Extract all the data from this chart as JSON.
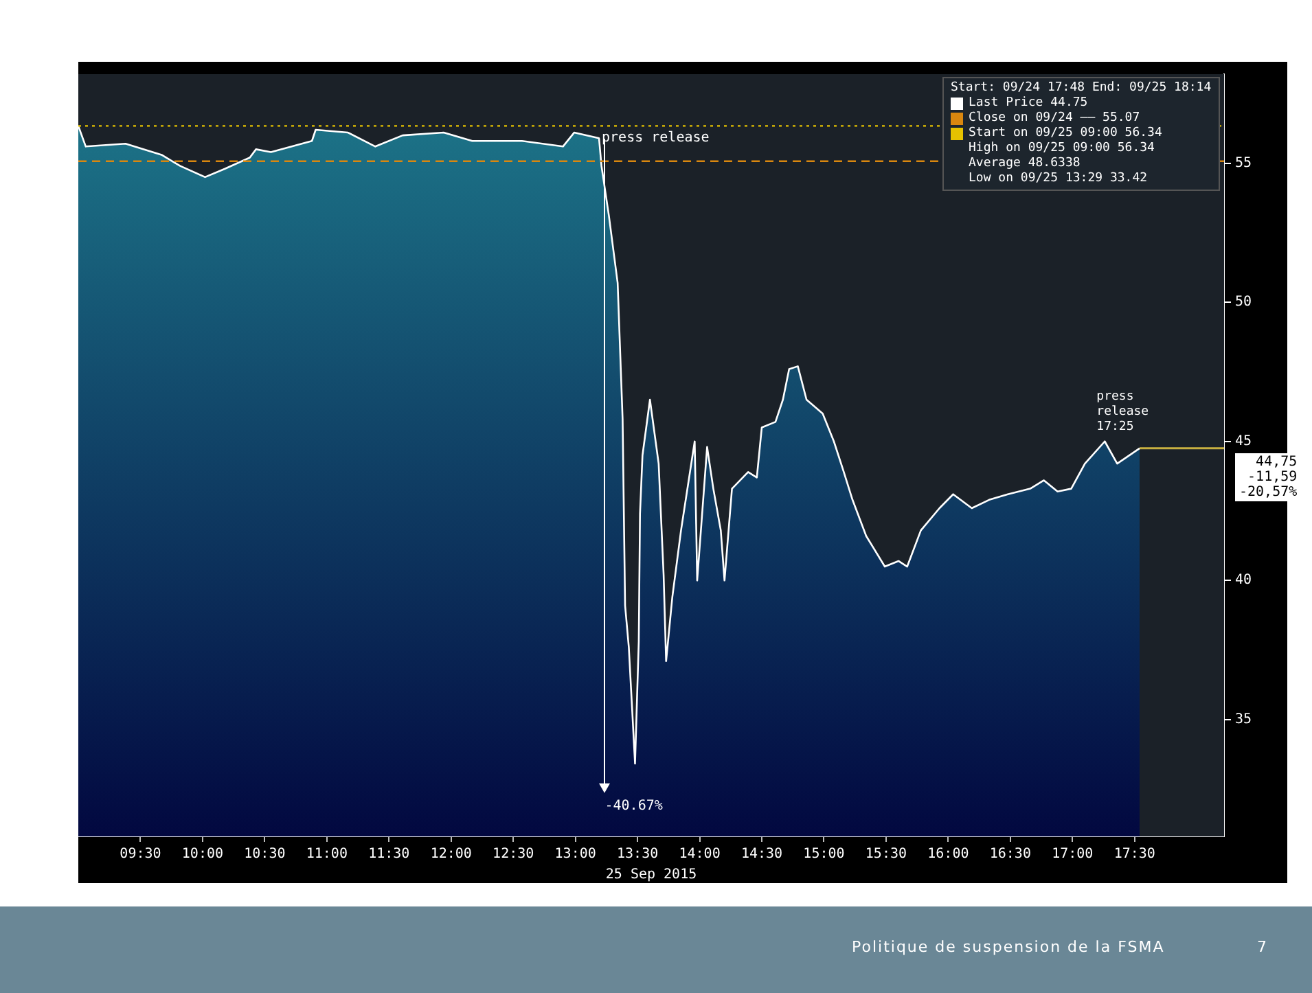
{
  "chart_data": {
    "type": "area",
    "xlabel": "25 Sep 2015",
    "legend": "top right",
    "legend_title": "Start: 09/24 17:48 End: 09/25 18:14",
    "xlim": [
      9.0,
      18.22
    ],
    "ylim": [
      30.8,
      58.2
    ],
    "xticks": [
      {
        "value": 9.5,
        "label": "09:30"
      },
      {
        "value": 10,
        "label": "10:00"
      },
      {
        "value": 10.5,
        "label": "10:30"
      },
      {
        "value": 11,
        "label": "11:00"
      },
      {
        "value": 11.5,
        "label": "11:30"
      },
      {
        "value": 12,
        "label": "12:00"
      },
      {
        "value": 12.5,
        "label": "12:30"
      },
      {
        "value": 13,
        "label": "13:00"
      },
      {
        "value": 13.5,
        "label": "13:30"
      },
      {
        "value": 14,
        "label": "14:00"
      },
      {
        "value": 14.5,
        "label": "14:30"
      },
      {
        "value": 15,
        "label": "15:00"
      },
      {
        "value": 15.5,
        "label": "15:30"
      },
      {
        "value": 16,
        "label": "16:00"
      },
      {
        "value": 16.5,
        "label": "16:30"
      },
      {
        "value": 17,
        "label": "17:00"
      },
      {
        "value": 17.5,
        "label": "17:30"
      }
    ],
    "yticks": [
      35,
      40,
      45,
      50,
      55
    ],
    "series": [
      {
        "name": "Last Price 44.75",
        "color": "#1e7a8c",
        "x": [
          9.0,
          9.06,
          9.38,
          9.67,
          9.82,
          10.02,
          10.18,
          10.38,
          10.43,
          10.55,
          10.88,
          10.91,
          11.17,
          11.39,
          11.61,
          11.94,
          12.17,
          12.57,
          12.9,
          12.99,
          13.19,
          13.21,
          13.27,
          13.34,
          13.38,
          13.4,
          13.43,
          13.48,
          13.51,
          13.52,
          13.54,
          13.6,
          13.67,
          13.71,
          13.73,
          13.78,
          13.85,
          13.96,
          13.98,
          14.06,
          14.11,
          14.17,
          14.2,
          14.26,
          14.39,
          14.46,
          14.5,
          14.61,
          14.67,
          14.72,
          14.79,
          14.86,
          14.99,
          15.08,
          15.16,
          15.23,
          15.34,
          15.49,
          15.6,
          15.67,
          15.78,
          15.93,
          16.04,
          16.19,
          16.33,
          16.48,
          16.66,
          16.77,
          16.88,
          16.99,
          17.1,
          17.26,
          17.36,
          17.54
        ],
        "values": [
          56.34,
          55.6,
          55.7,
          55.3,
          54.9,
          54.5,
          54.8,
          55.2,
          55.5,
          55.4,
          55.8,
          56.2,
          56.1,
          55.6,
          56.0,
          56.1,
          55.8,
          55.8,
          55.6,
          56.1,
          55.9,
          54.9,
          53.1,
          50.7,
          45.8,
          39.1,
          37.6,
          33.42,
          37.8,
          42.4,
          44.5,
          46.5,
          44.2,
          40.2,
          37.1,
          39.4,
          41.8,
          45.0,
          40.0,
          44.8,
          43.3,
          41.8,
          40.0,
          43.3,
          43.9,
          43.7,
          45.5,
          45.7,
          46.5,
          47.6,
          47.7,
          46.5,
          46.0,
          45.0,
          43.9,
          42.9,
          41.6,
          40.5,
          40.7,
          40.5,
          41.8,
          42.6,
          43.1,
          42.6,
          42.9,
          43.1,
          43.3,
          43.6,
          43.2,
          43.3,
          44.2,
          45.0,
          44.2,
          44.75
        ]
      },
      {
        "type": "line",
        "color": "#c8b040",
        "x": [
          17.54,
          18.22
        ],
        "values": [
          44.75,
          44.75
        ]
      }
    ],
    "ref_lines": [
      {
        "axis": "y",
        "value": 56.34,
        "label": "Start on 09/25 09:00 56.34",
        "color": "#e6c200",
        "line_style": "dotted"
      },
      {
        "axis": "y",
        "value": 55.07,
        "label": "Close on 09/24 —— 55.07",
        "color": "#d9870f",
        "line_style": "dashed"
      }
    ],
    "annotations": [
      "High on 09/25 09:00 56.34",
      "Average 48.6338",
      "Low on 09/25 13:29 33.42",
      {
        "text": "press release",
        "x": 13.19,
        "y": 55.87
      },
      {
        "text": "-40.67%",
        "x": 13.48,
        "y": 33.42
      },
      {
        "text": "press release 17:25",
        "x": 17.26,
        "y": 45.0
      },
      {
        "text": "44,75\n-11,59\n-20,57%",
        "x": 18.22,
        "y": 44.75
      },
      "Politique de suspension de la FSMA",
      "7"
    ]
  }
}
